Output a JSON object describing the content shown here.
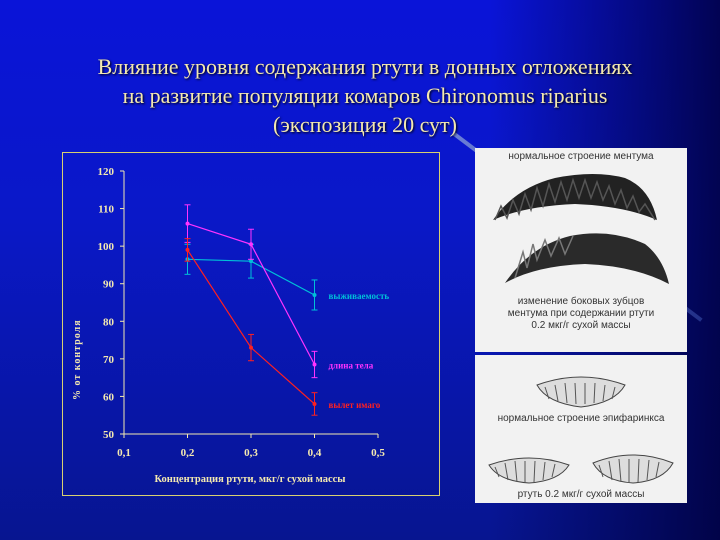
{
  "slide": {
    "title_line1": "Влияние уровня содержания ртути в донных отложениях",
    "title_line2": "на развитие популяции комаров Chironomus riparius",
    "title_line3": "(экспозиция 20 сут)"
  },
  "chart_data": {
    "type": "line",
    "xlabel": "Концентрация ртути, мкг/г сухой массы",
    "ylabel": "% от контроля",
    "x": [
      0.2,
      0.3,
      0.4
    ],
    "x_ticks": [
      "0,1",
      "0,2",
      "0,3",
      "0,4",
      "0,5"
    ],
    "x_tick_values": [
      0.1,
      0.2,
      0.3,
      0.4,
      0.5
    ],
    "xlim": [
      0.1,
      0.5
    ],
    "y_ticks": [
      "50",
      "60",
      "70",
      "80",
      "90",
      "100",
      "110",
      "120"
    ],
    "y_tick_values": [
      50,
      60,
      70,
      80,
      90,
      100,
      110,
      120
    ],
    "ylim": [
      50,
      120
    ],
    "grid": false,
    "series": [
      {
        "name": "выживаемость",
        "color": "#00c0d8",
        "values": [
          96.5,
          96,
          87
        ],
        "errors": [
          4,
          4.5,
          4
        ]
      },
      {
        "name": "длина тела",
        "color": "#ff33ff",
        "values": [
          106,
          100.5,
          68.5
        ],
        "errors": [
          5,
          4,
          3.5
        ]
      },
      {
        "name": "вылет имаго",
        "color": "#ff2020",
        "values": [
          99,
          73,
          58
        ],
        "errors": [
          3,
          3.5,
          3
        ]
      }
    ]
  },
  "figures": {
    "mentum_normal": "нормальное строение ментума",
    "mentum_changed_1": "изменение боковых зубцов",
    "mentum_changed_2": "ментума при содержании ртути",
    "mentum_changed_3": "0.2 мкг/г сухой массы",
    "epipharynx_normal": "нормальное строение эпифаринкса",
    "epipharynx_changed": "ртуть 0.2 мкг/г сухой массы"
  }
}
